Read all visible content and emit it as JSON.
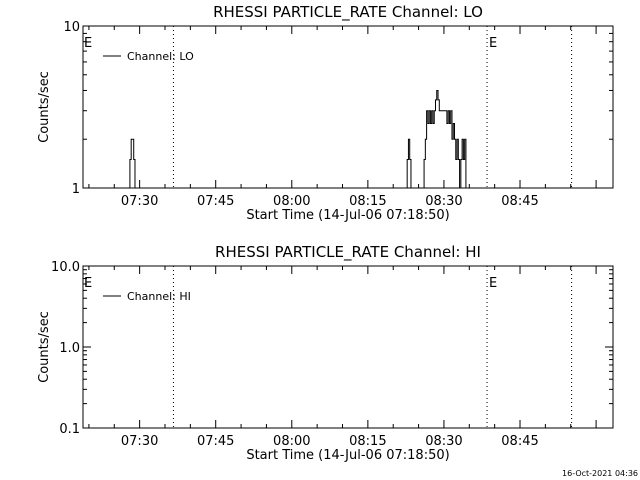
{
  "timestamp": "16-Oct-2021 04:36",
  "chart_data": [
    {
      "type": "line",
      "title": "RHESSI PARTICLE_RATE Channel: LO",
      "xlabel": "Start Time (14-Jul-06 07:18:50)",
      "ylabel": "Counts/sec",
      "yscale": "log",
      "xlim": [
        "07:18:50",
        "09:03:20"
      ],
      "ylim": [
        1,
        10
      ],
      "x_ticks": [
        "07:30",
        "07:45",
        "08:00",
        "08:15",
        "08:30",
        "08:45"
      ],
      "y_ticks": [
        "1",
        "10"
      ],
      "legend": {
        "label": "Channel: LO",
        "position": "top-left"
      },
      "event_lines": [
        {
          "time": "07:36:40",
          "label": ""
        },
        {
          "time": "08:38:30",
          "label": "E"
        },
        {
          "time": "08:55:10",
          "label": ""
        }
      ],
      "left_marker": "E",
      "series": [
        {
          "name": "Channel: LO",
          "x": [
            "07:27:50",
            "07:28:05",
            "07:28:20",
            "07:28:35",
            "07:28:50",
            "07:29:05",
            "07:29:20",
            "08:22:30",
            "08:22:45",
            "08:23:00",
            "08:23:15",
            "08:23:30",
            "08:25:50",
            "08:26:05",
            "08:26:20",
            "08:26:35",
            "08:26:50",
            "08:27:05",
            "08:27:20",
            "08:27:35",
            "08:27:50",
            "08:28:05",
            "08:28:20",
            "08:28:35",
            "08:28:50",
            "08:29:05",
            "08:29:20",
            "08:29:35",
            "08:29:50",
            "08:30:05",
            "08:30:20",
            "08:30:35",
            "08:30:50",
            "08:31:05",
            "08:31:20",
            "08:31:35",
            "08:31:50",
            "08:32:05",
            "08:32:20",
            "08:32:35",
            "08:32:50",
            "08:33:05",
            "08:33:20",
            "08:33:35",
            "08:33:50",
            "08:34:05",
            "08:34:20",
            "08:34:35",
            "08:34:50"
          ],
          "y": [
            1,
            1.5,
            2,
            2,
            1.5,
            1,
            1,
            1,
            1.5,
            2,
            1.5,
            1,
            1,
            1.5,
            2,
            3,
            2.5,
            3,
            2.5,
            3,
            2.5,
            3,
            3.5,
            4,
            3.5,
            3,
            3,
            3,
            3,
            3,
            3,
            2.5,
            3,
            2.5,
            3,
            2,
            2.5,
            2,
            1.5,
            2,
            1.5,
            1,
            1.5,
            2,
            1.5,
            2,
            1,
            1,
            1
          ]
        }
      ]
    },
    {
      "type": "line",
      "title": "RHESSI PARTICLE_RATE Channel: HI",
      "xlabel": "Start Time (14-Jul-06 07:18:50)",
      "ylabel": "Counts/sec",
      "yscale": "log",
      "xlim": [
        "07:18:50",
        "09:03:20"
      ],
      "ylim": [
        0.1,
        10
      ],
      "x_ticks": [
        "07:30",
        "07:45",
        "08:00",
        "08:15",
        "08:30",
        "08:45"
      ],
      "y_ticks": [
        "0.1",
        "1.0",
        "10.0"
      ],
      "legend": {
        "label": "Channel: HI",
        "position": "top-left"
      },
      "event_lines": [
        {
          "time": "07:36:40",
          "label": ""
        },
        {
          "time": "08:38:30",
          "label": "E"
        },
        {
          "time": "08:55:10",
          "label": ""
        }
      ],
      "left_marker": "E",
      "series": [
        {
          "name": "Channel: HI",
          "x": [],
          "y": []
        }
      ]
    }
  ]
}
